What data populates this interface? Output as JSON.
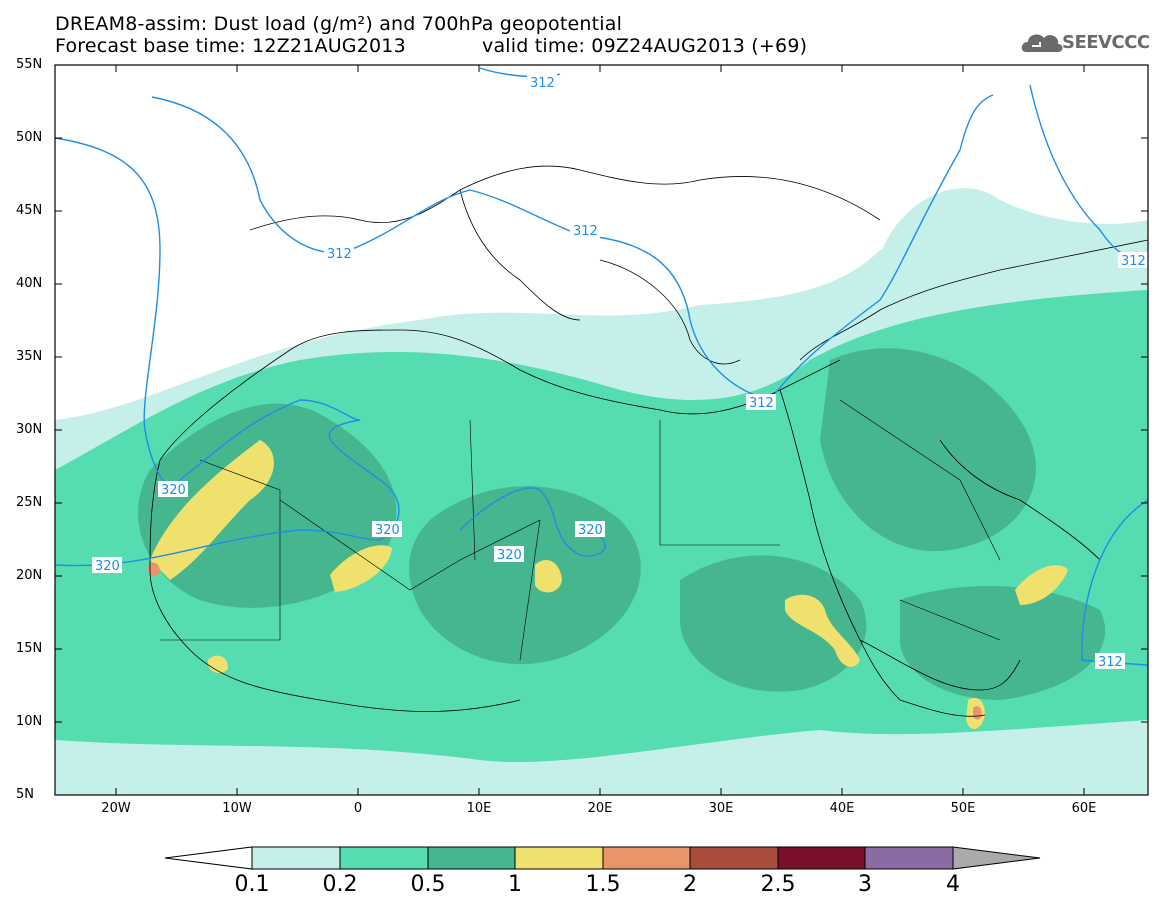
{
  "header": {
    "line1": "DREAM8-assim: Dust load (g/m²) and 700hPa geopotential",
    "line2_left": "Forecast base time: 12Z21AUG2013",
    "line2_right": "valid time: 09Z24AUG2013 (+69)",
    "logo_text": "SEEVCCC",
    "logo_icon": "cloud-icon"
  },
  "map": {
    "lat_labels": [
      "55N",
      "50N",
      "45N",
      "40N",
      "35N",
      "30N",
      "25N",
      "20N",
      "15N",
      "10N",
      "5N"
    ],
    "lon_labels": [
      "20W",
      "10W",
      "0",
      "10E",
      "20E",
      "30E",
      "40E",
      "50E",
      "60E"
    ],
    "extent": {
      "lon_min": -25,
      "lon_max": 65,
      "lat_min": 5,
      "lat_max": 55
    },
    "contour_labels": [
      {
        "text": "312",
        "lon": -11,
        "lat": 42.1
      },
      {
        "text": "312",
        "lon": 16,
        "lat": 54.3
      },
      {
        "text": "312",
        "lon": 17,
        "lat": 42.9
      },
      {
        "text": "312",
        "lon": 33,
        "lat": 31.9
      },
      {
        "text": "312",
        "lon": 63.5,
        "lat": 40.9
      },
      {
        "text": "312",
        "lon": 61.5,
        "lat": 14.1
      },
      {
        "text": "320",
        "lon": -16,
        "lat": 26.1
      },
      {
        "text": "320",
        "lon": 0.5,
        "lat": 23.2
      },
      {
        "text": "320",
        "lon": -21,
        "lat": 20.6
      },
      {
        "text": "320",
        "lon": 12,
        "lat": 21.4
      },
      {
        "text": "320",
        "lon": 19,
        "lat": 23.2
      }
    ]
  },
  "colorbar": {
    "labels": [
      "0.1",
      "0.2",
      "0.5",
      "1",
      "1.5",
      "2",
      "2.5",
      "3",
      "4"
    ],
    "colors": [
      "#c5efe9",
      "#55dcb0",
      "#45b68e",
      "#f0e06e",
      "#e8956a",
      "#a84d3e",
      "#7a0f2c",
      "#8b6ba3"
    ],
    "under_color": "#ffffff",
    "over_color": "#aaaaaa"
  }
}
